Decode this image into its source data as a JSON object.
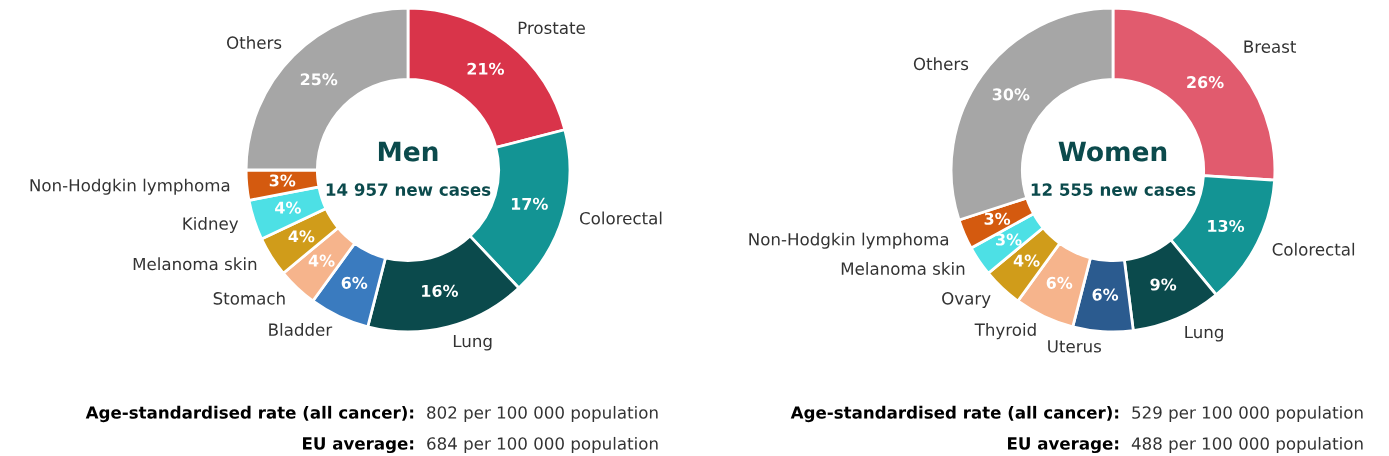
{
  "chart_data": [
    {
      "type": "donut",
      "title": "Men",
      "subtitle": "14 957 new cases",
      "categories": [
        "Prostate",
        "Colorectal",
        "Lung",
        "Bladder",
        "Stomach",
        "Melanoma skin",
        "Kidney",
        "Non-Hodgkin lymphoma",
        "Others"
      ],
      "values": [
        21,
        17,
        16,
        6,
        4,
        4,
        4,
        3,
        25
      ],
      "value_labels": [
        "21%",
        "17%",
        "16%",
        "6%",
        "4%",
        "4%",
        "4%",
        "3%",
        "25%"
      ],
      "colors": [
        "#d9344a",
        "#139494",
        "#0b4a4c",
        "#3a7bbf",
        "#f6b48c",
        "#d09c1a",
        "#4de0e5",
        "#d45a0f",
        "#a6a6a6"
      ],
      "annotations": [
        "Age-standardised rate (all cancer):",
        "802 per 100 000 population",
        "EU average:",
        "684 per 100 000 population"
      ],
      "legend": false
    },
    {
      "type": "donut",
      "title": "Women",
      "subtitle": "12 555 new cases",
      "categories": [
        "Breast",
        "Colorectal",
        "Lung",
        "Uterus",
        "Thyroid",
        "Ovary",
        "Melanoma skin",
        "Non-Hodgkin lymphoma",
        "Others"
      ],
      "values": [
        26,
        13,
        9,
        6,
        6,
        4,
        3,
        3,
        30
      ],
      "value_labels": [
        "26%",
        "13%",
        "9%",
        "6%",
        "6%",
        "4%",
        "3%",
        "3%",
        "30%"
      ],
      "colors": [
        "#e15b6e",
        "#139494",
        "#0b4a4c",
        "#2b5b8f",
        "#f6b48c",
        "#d09c1a",
        "#4de0e5",
        "#d45a0f",
        "#a6a6a6"
      ],
      "annotations": [
        "Age-standardised rate (all cancer):",
        "529 per 100 000 population",
        "EU average:",
        "488 per 100 000 population"
      ],
      "legend": false
    }
  ]
}
